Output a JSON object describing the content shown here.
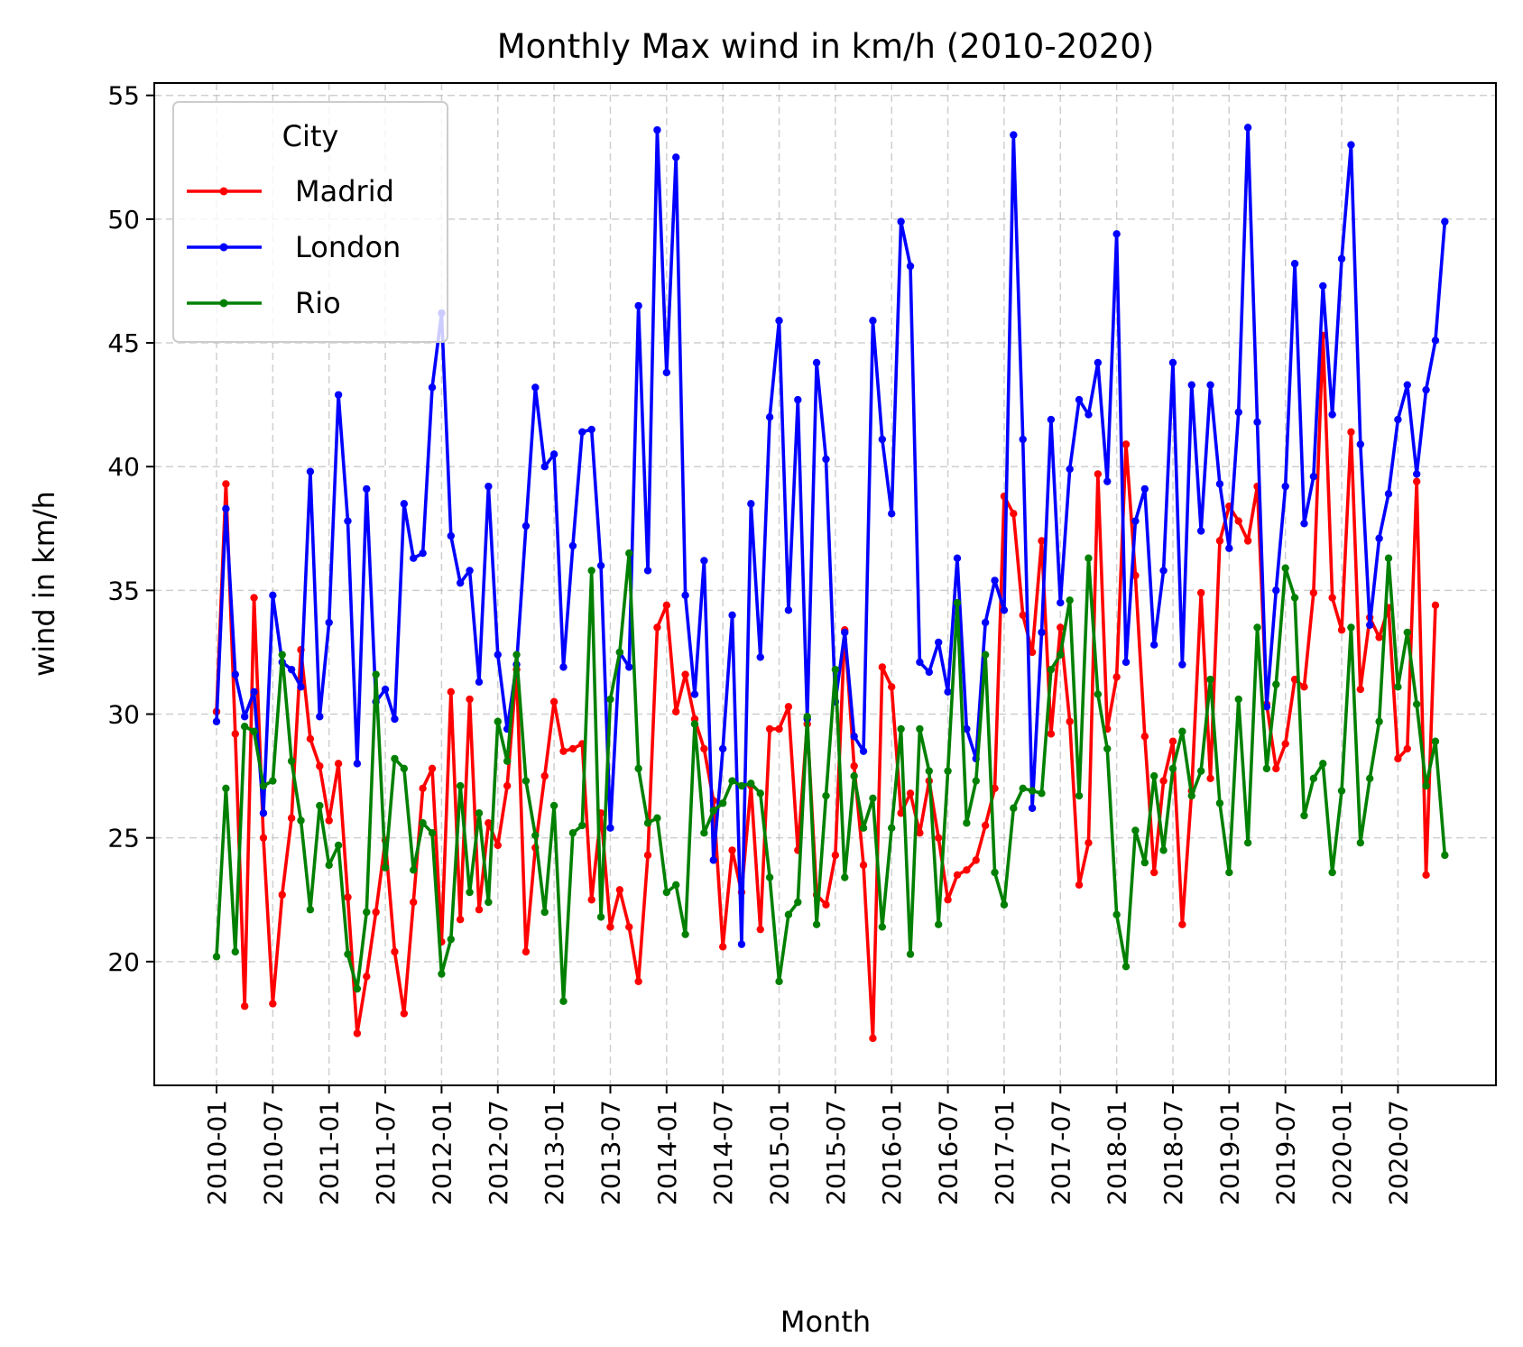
{
  "chart_data": {
    "type": "line",
    "title": "Monthly Max wind in km/h (2010-2020)",
    "xlabel": "Month",
    "ylabel": "wind in km/h",
    "ylim": [
      15,
      55.5
    ],
    "yticks": [
      20,
      25,
      30,
      35,
      40,
      45,
      50,
      55
    ],
    "xtick_labels": [
      "2010-01",
      "2010-07",
      "2011-01",
      "2011-07",
      "2012-01",
      "2012-07",
      "2013-01",
      "2013-07",
      "2014-01",
      "2014-07",
      "2015-01",
      "2015-07",
      "2016-01",
      "2016-07",
      "2017-01",
      "2017-07",
      "2018-01",
      "2018-07",
      "2019-01",
      "2019-07",
      "2020-01",
      "2020-07"
    ],
    "grid": true,
    "legend": {
      "title": "City",
      "placement": "top-left"
    },
    "series": [
      {
        "name": "Madrid",
        "color": "#ff0000",
        "values": [
          30.1,
          39.3,
          29.2,
          18.2,
          34.7,
          25.0,
          18.3,
          22.7,
          25.8,
          32.6,
          29.0,
          27.9,
          25.7,
          28.0,
          22.6,
          17.1,
          19.4,
          22.0,
          24.9,
          20.4,
          17.9,
          22.4,
          27.0,
          27.8,
          20.8,
          30.9,
          21.7,
          30.6,
          22.1,
          25.6,
          24.7,
          27.1,
          31.8,
          20.4,
          24.6,
          27.5,
          30.5,
          28.5,
          28.6,
          28.8,
          22.5,
          26.0,
          21.4,
          22.9,
          21.4,
          19.2,
          24.3,
          33.5,
          34.4,
          30.1,
          31.6,
          29.8,
          28.6,
          26.5,
          20.6,
          24.5,
          22.8,
          27.1,
          21.3,
          29.4,
          29.4,
          30.3,
          24.5,
          29.6,
          22.7,
          22.3,
          24.3,
          33.4,
          27.9,
          23.9,
          16.9,
          31.9,
          31.1,
          26.0,
          26.8,
          25.2,
          27.3,
          25.0,
          22.5,
          23.5,
          23.7,
          24.1,
          25.5,
          27.0,
          38.8,
          38.1,
          34.0,
          32.5,
          37.0,
          29.2,
          33.5,
          29.7,
          23.1,
          24.8,
          39.7,
          29.4,
          31.5,
          40.9,
          35.6,
          29.1,
          23.6,
          27.3,
          28.9,
          21.5,
          26.9,
          34.9,
          27.4,
          37.0,
          38.4,
          37.8,
          37.0,
          39.2,
          30.4,
          27.8,
          28.8,
          31.4,
          31.1,
          34.9,
          45.3,
          34.7,
          33.4,
          41.4,
          31.0,
          33.9,
          33.1,
          34.3,
          28.2,
          28.6,
          39.4,
          23.5,
          34.4
        ]
      },
      {
        "name": "London",
        "color": "#0000ff",
        "values": [
          29.7,
          38.3,
          31.6,
          29.9,
          30.9,
          26.0,
          34.8,
          32.1,
          31.8,
          31.1,
          39.8,
          29.9,
          33.7,
          42.9,
          37.8,
          28.0,
          39.1,
          30.5,
          31.0,
          29.8,
          38.5,
          36.3,
          36.5,
          43.2,
          46.2,
          37.2,
          35.3,
          35.8,
          31.3,
          39.2,
          32.4,
          29.4,
          32.0,
          37.6,
          43.2,
          40.0,
          40.5,
          31.9,
          36.8,
          41.4,
          41.5,
          36.0,
          25.4,
          32.5,
          31.9,
          46.5,
          35.8,
          53.6,
          43.8,
          52.5,
          34.8,
          30.8,
          36.2,
          24.1,
          28.6,
          34.0,
          20.7,
          38.5,
          32.3,
          42.0,
          45.9,
          34.2,
          42.7,
          29.8,
          44.2,
          40.3,
          30.5,
          33.3,
          29.1,
          28.5,
          45.9,
          41.1,
          38.1,
          49.9,
          48.1,
          32.1,
          31.7,
          32.9,
          30.9,
          36.3,
          29.4,
          28.2,
          33.7,
          35.4,
          34.2,
          53.4,
          41.1,
          26.2,
          33.3,
          41.9,
          34.5,
          39.9,
          42.7,
          42.1,
          44.2,
          39.4,
          49.4,
          32.1,
          37.8,
          39.1,
          32.8,
          35.8,
          44.2,
          32.0,
          43.3,
          37.4,
          43.3,
          39.3,
          36.7,
          42.2,
          53.7,
          41.8,
          30.3,
          35.0,
          39.2,
          48.2,
          37.7,
          39.6,
          47.3,
          42.1,
          48.4,
          53.0,
          40.9,
          33.6,
          37.1,
          38.9,
          41.9,
          43.3,
          39.7,
          43.1,
          45.1,
          49.9
        ]
      },
      {
        "name": "Rio",
        "color": "#008000",
        "values": [
          20.2,
          27.0,
          20.4,
          29.5,
          29.3,
          27.1,
          27.3,
          32.4,
          28.1,
          25.7,
          22.1,
          26.3,
          23.9,
          24.7,
          20.3,
          18.9,
          22.0,
          31.6,
          23.8,
          28.2,
          27.8,
          23.7,
          25.6,
          25.2,
          19.5,
          20.9,
          27.1,
          22.8,
          26.0,
          22.4,
          29.7,
          28.1,
          32.4,
          27.3,
          25.1,
          22.0,
          26.3,
          18.4,
          25.2,
          25.5,
          35.8,
          21.8,
          30.6,
          32.5,
          36.5,
          27.8,
          25.6,
          25.8,
          22.8,
          23.1,
          21.1,
          29.6,
          25.2,
          26.1,
          26.4,
          27.3,
          27.1,
          27.2,
          26.8,
          23.4,
          19.2,
          21.9,
          22.4,
          29.9,
          21.5,
          26.7,
          31.8,
          23.4,
          27.5,
          25.4,
          26.6,
          21.4,
          25.4,
          29.4,
          20.3,
          29.4,
          27.7,
          21.5,
          27.7,
          34.5,
          25.6,
          27.3,
          32.4,
          23.6,
          22.3,
          26.2,
          27.0,
          26.9,
          26.8,
          31.8,
          32.4,
          34.6,
          26.7,
          36.3,
          30.8,
          28.6,
          21.9,
          19.8,
          25.3,
          24.0,
          27.5,
          24.5,
          27.8,
          29.3,
          26.7,
          27.7,
          31.4,
          26.4,
          23.6,
          30.6,
          24.8,
          33.5,
          27.8,
          31.2,
          35.9,
          34.7,
          25.9,
          27.4,
          28.0,
          23.6,
          26.9,
          33.5,
          24.8,
          27.4,
          29.7,
          36.3,
          31.1,
          33.3,
          30.4,
          27.1,
          28.9,
          24.3
        ]
      }
    ]
  }
}
